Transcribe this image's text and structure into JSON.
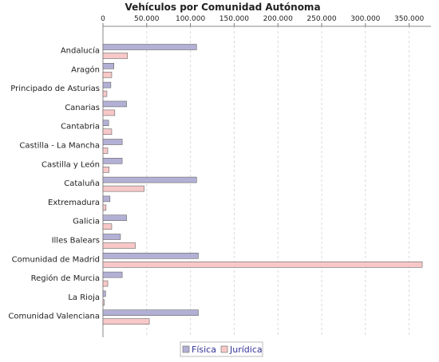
{
  "chart_data": {
    "type": "bar",
    "orientation": "horizontal",
    "title": "Vehículos por Comunidad Autónoma",
    "xlabel": "",
    "ylabel": "",
    "xlim": [
      0,
      375000
    ],
    "x_ticks": [
      0,
      50000,
      100000,
      150000,
      200000,
      250000,
      300000,
      350000
    ],
    "x_tick_labels": [
      "0",
      "50.000",
      "100.000",
      "150.000",
      "200.000",
      "250.000",
      "300.000",
      "350.000"
    ],
    "axis_position": "top",
    "grid": true,
    "legend_position": "bottom",
    "categories": [
      "Andalucía",
      "Aragón",
      "Principado de Asturias",
      "Canarias",
      "Cantabria",
      "Castilla - La Mancha",
      "Castilla y León",
      "Cataluña",
      "Extremadura",
      "Galicia",
      "Illes Balears",
      "Comunidad de Madrid",
      "Región de Murcia",
      "La Rioja",
      "Comunidad Valenciana"
    ],
    "series": [
      {
        "name": "Física",
        "color": "#b3b0d6",
        "values": [
          107000,
          12500,
          9000,
          27000,
          6500,
          22000,
          22000,
          107000,
          8000,
          27000,
          20000,
          109000,
          22000,
          3000,
          109000
        ]
      },
      {
        "name": "Jurídica",
        "color": "#f8c8c8",
        "values": [
          28000,
          10000,
          4500,
          13500,
          10000,
          5500,
          7000,
          47000,
          3500,
          10000,
          37000,
          365000,
          5500,
          1500,
          53000
        ]
      }
    ]
  }
}
